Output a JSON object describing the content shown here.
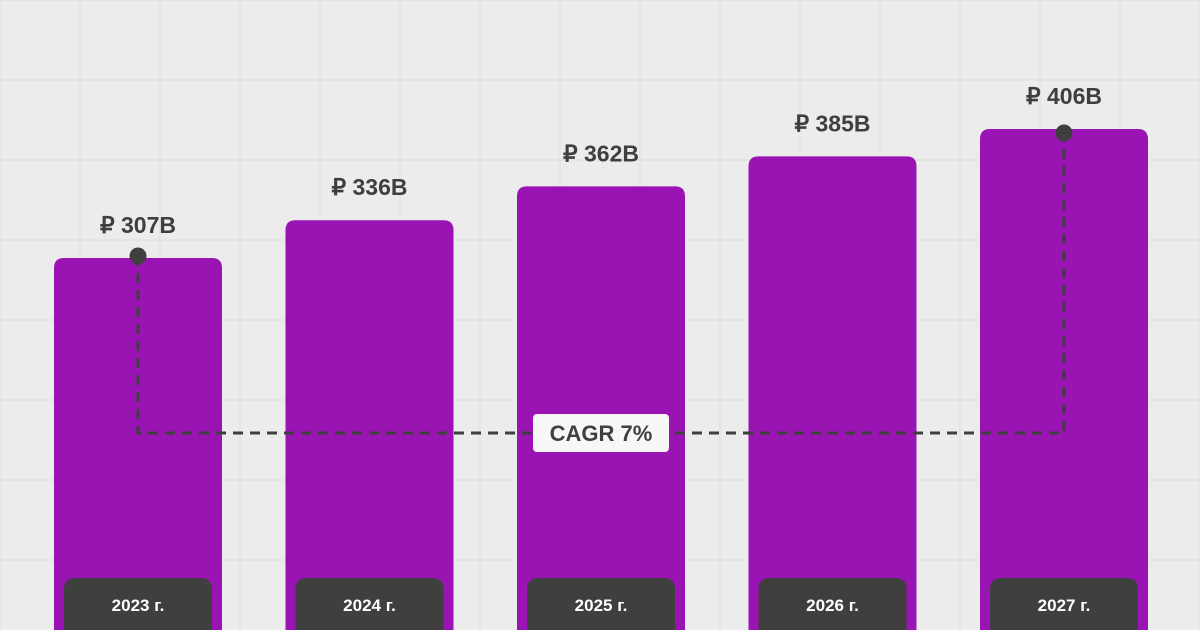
{
  "chart_data": {
    "type": "bar",
    "categories": [
      "2023 г.",
      "2024 г.",
      "2025 г.",
      "2026 г.",
      "2027 г."
    ],
    "values": [
      307,
      336,
      362,
      385,
      406
    ],
    "value_labels": [
      "₽ 307B",
      "₽ 336B",
      "₽ 362B",
      "₽ 385B",
      "₽ 406B"
    ],
    "annotation": "CAGR 7%",
    "grid": true,
    "colors": {
      "bar": "#9914b3",
      "background": "#ececec",
      "grid": "#dedede",
      "dark": "#3f3f3f",
      "annotation_bg": "#f7f7f7"
    }
  }
}
